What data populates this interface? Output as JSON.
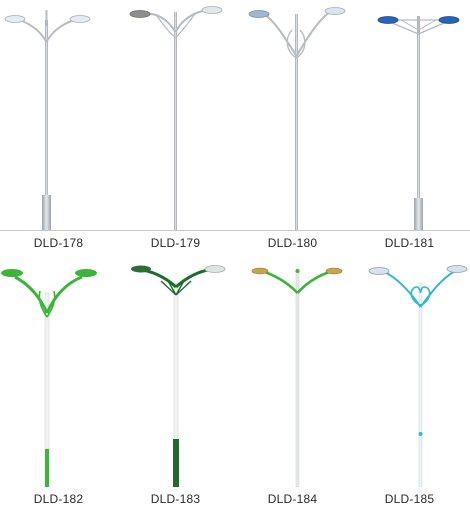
{
  "colors": {
    "pole_silver": "#c4c9cf",
    "pole_shade": "#9aa1a8",
    "green": "#3db43a",
    "dark_green": "#1f6b2e",
    "cyan": "#35b6d1",
    "lamp_blue": "#2a63b8"
  },
  "catalog": {
    "models": [
      {
        "code": "DLD-178",
        "style": "silver-bent-arms"
      },
      {
        "code": "DLD-179",
        "style": "silver-twin-arcs"
      },
      {
        "code": "DLD-180",
        "style": "silver-loop-heart"
      },
      {
        "code": "DLD-181",
        "style": "silver-truss-blue-lamps"
      },
      {
        "code": "DLD-182",
        "style": "green-sweep-arms"
      },
      {
        "code": "DLD-183",
        "style": "dark-green-ornate"
      },
      {
        "code": "DLD-184",
        "style": "green-curved-arms"
      },
      {
        "code": "DLD-185",
        "style": "cyan-heart-loop"
      }
    ]
  }
}
